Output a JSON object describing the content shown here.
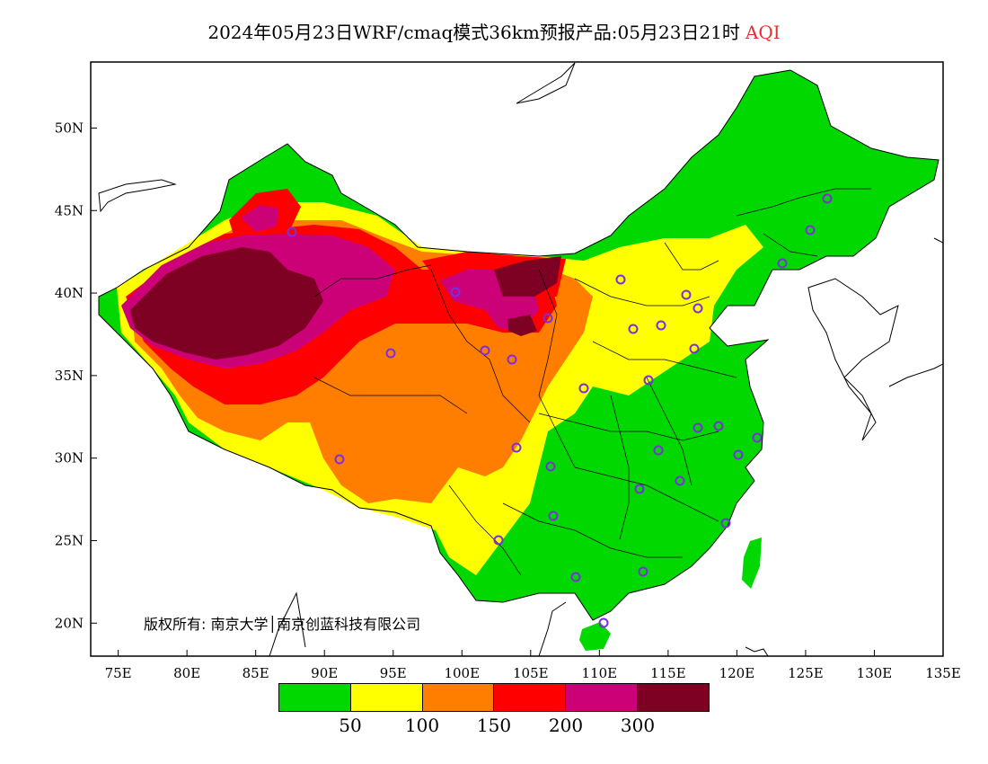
{
  "title": {
    "main": "2024年05月23日WRF/cmaq模式36km预报产品:05月23日21时",
    "variable": "AQI"
  },
  "map": {
    "lon_range": [
      73,
      135
    ],
    "lat_range": [
      18,
      54
    ],
    "lon_ticks": [
      "75E",
      "80E",
      "85E",
      "90E",
      "95E",
      "100E",
      "105E",
      "110E",
      "115E",
      "120E",
      "125E",
      "130E",
      "135E"
    ],
    "lat_ticks": [
      "50N",
      "45N",
      "40N",
      "35N",
      "30N",
      "25N",
      "20N"
    ]
  },
  "copyright": "版权所有: 南京大学│南京创蓝科技有限公司",
  "legend": {
    "colors": [
      "#00d800",
      "#ffff00",
      "#ff7e00",
      "#ff0000",
      "#cc0077",
      "#7e0023"
    ],
    "labels": [
      "50",
      "100",
      "150",
      "200",
      "300"
    ]
  }
}
